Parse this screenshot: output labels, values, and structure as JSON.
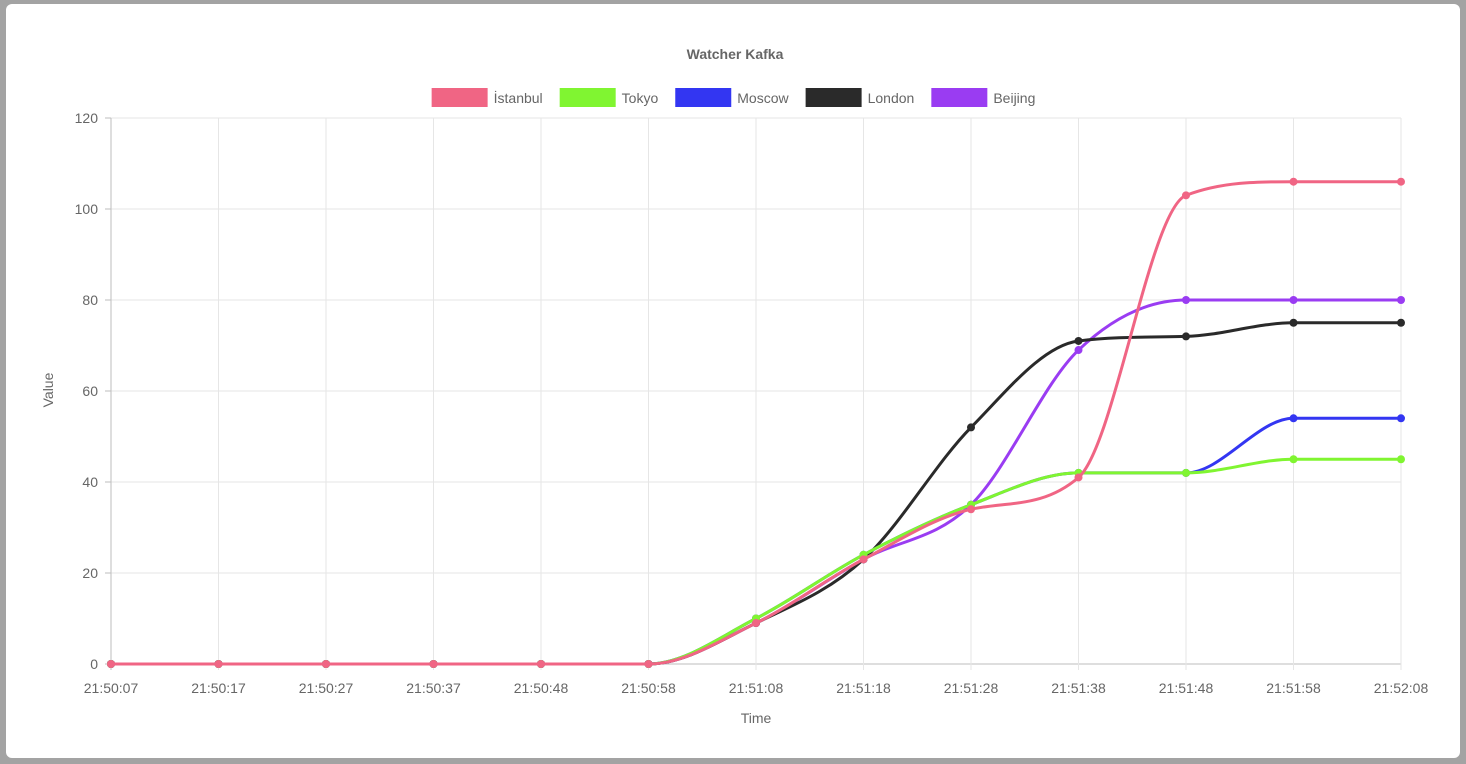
{
  "chart_data": {
    "type": "line",
    "title": "Watcher Kafka",
    "xlabel": "Time",
    "ylabel": "Value",
    "ylim": [
      0,
      120
    ],
    "yticks": [
      0,
      20,
      40,
      60,
      80,
      100,
      120
    ],
    "categories": [
      "21:50:07",
      "21:50:17",
      "21:50:27",
      "21:50:37",
      "21:50:48",
      "21:50:58",
      "21:51:08",
      "21:51:18",
      "21:51:28",
      "21:51:38",
      "21:51:48",
      "21:51:58",
      "21:52:08"
    ],
    "grid": true,
    "legend_position": "top",
    "series": [
      {
        "name": "İstanbul",
        "color": "#f06584",
        "values": [
          0,
          0,
          0,
          0,
          0,
          0,
          9,
          23,
          34,
          41,
          103,
          106,
          106
        ]
      },
      {
        "name": "Tokyo",
        "color": "#80f531",
        "values": [
          0,
          0,
          0,
          0,
          0,
          0,
          10,
          24,
          35,
          42,
          42,
          45,
          45
        ]
      },
      {
        "name": "Moscow",
        "color": "#3336f2",
        "values": [
          0,
          0,
          0,
          0,
          0,
          0,
          10,
          24,
          35,
          42,
          42,
          54,
          54
        ]
      },
      {
        "name": "London",
        "color": "#2a2a2a",
        "values": [
          0,
          0,
          0,
          0,
          0,
          0,
          9,
          23,
          52,
          71,
          72,
          75,
          75
        ]
      },
      {
        "name": "Beijing",
        "color": "#9a3cf2",
        "values": [
          0,
          0,
          0,
          0,
          0,
          0,
          9,
          23,
          35,
          69,
          80,
          80,
          80
        ]
      }
    ]
  }
}
